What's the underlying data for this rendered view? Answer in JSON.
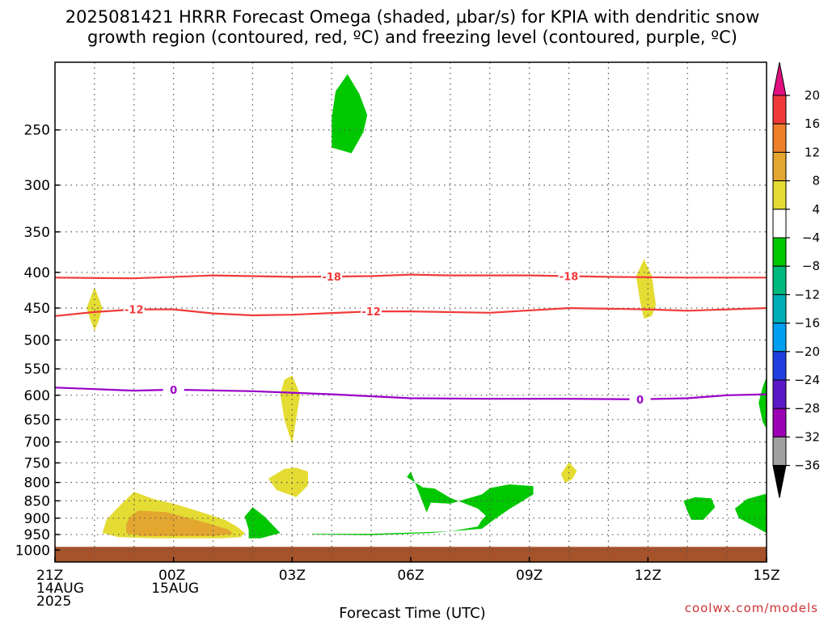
{
  "chart_data": {
    "type": "contour",
    "title_line1": "2025081421 HRRR Forecast Omega (shaded, μbar/s) for KPIA with dendritic snow",
    "title_line2": "growth region (contoured, red, ºC) and freezing level (contoured, purple, ºC)",
    "xlabel": "Forecast Time (UTC)",
    "credit": "coolwx.com/models",
    "x_range_hours": [
      0,
      18
    ],
    "y_scale": "log",
    "y_range_mb": [
      200,
      1040
    ],
    "y_ticks": [
      250,
      300,
      350,
      400,
      450,
      500,
      550,
      600,
      650,
      700,
      750,
      800,
      850,
      900,
      950,
      1000
    ],
    "x_ticks": [
      {
        "h": 0,
        "lines": [
          "21Z",
          "14AUG",
          "2025"
        ]
      },
      {
        "h": 3,
        "lines": [
          "00Z",
          "15AUG"
        ]
      },
      {
        "h": 6,
        "lines": [
          "03Z"
        ]
      },
      {
        "h": 9,
        "lines": [
          "06Z"
        ]
      },
      {
        "h": 12,
        "lines": [
          "09Z"
        ]
      },
      {
        "h": 15,
        "lines": [
          "12Z"
        ]
      },
      {
        "h": 18,
        "lines": [
          "15Z"
        ]
      }
    ],
    "colorbar": {
      "ticks": [
        "20",
        "16",
        "12",
        "8",
        "4",
        "−4",
        "−8",
        "−12",
        "−16",
        "−20",
        "−24",
        "−28",
        "−32",
        "−36"
      ],
      "colors": [
        "#f03a3a",
        "#ee7f2a",
        "#e3a72f",
        "#e4dc33",
        "#ffffff",
        "#00c800",
        "#00b97f",
        "#00aeb5",
        "#009ff0",
        "#1f3fe0",
        "#5a18c8",
        "#9a00b4",
        "#a0a0a0"
      ],
      "top_arrow_color": "#e0107f",
      "bottom_arrow_color": "#000000"
    },
    "contours": [
      {
        "value": "-18",
        "color": "#f03a3a",
        "label_hours": [
          7.0,
          13.0
        ],
        "points": [
          [
            0,
            407
          ],
          [
            2,
            408
          ],
          [
            4,
            404
          ],
          [
            6,
            406
          ],
          [
            8,
            405
          ],
          [
            9,
            403
          ],
          [
            10,
            404
          ],
          [
            12,
            404
          ],
          [
            14,
            406
          ],
          [
            16,
            407
          ],
          [
            18,
            407
          ]
        ]
      },
      {
        "value": "-12",
        "color": "#f03a3a",
        "label_hours": [
          2.0,
          8.0
        ],
        "points": [
          [
            0,
            462
          ],
          [
            1,
            456
          ],
          [
            2,
            452
          ],
          [
            3,
            452
          ],
          [
            4,
            458
          ],
          [
            5,
            461
          ],
          [
            6,
            460
          ],
          [
            8,
            455
          ],
          [
            9,
            455
          ],
          [
            11,
            457
          ],
          [
            13,
            450
          ],
          [
            15,
            452
          ],
          [
            16,
            454
          ],
          [
            18,
            450
          ]
        ]
      },
      {
        "value": "0",
        "color": "#9a00c8",
        "label_hours": [
          3.0,
          14.8
        ],
        "points": [
          [
            0,
            585
          ],
          [
            1,
            588
          ],
          [
            2,
            591
          ],
          [
            3,
            589
          ],
          [
            5,
            592
          ],
          [
            7,
            598
          ],
          [
            9,
            606
          ],
          [
            11,
            607
          ],
          [
            13,
            607
          ],
          [
            14.8,
            608
          ],
          [
            16,
            606
          ],
          [
            17,
            600
          ],
          [
            18,
            598
          ]
        ]
      }
    ],
    "shaded_regions": [
      {
        "value": "-4 to -8",
        "color": "#00c800",
        "points": [
          [
            7.4,
            208
          ],
          [
            7.7,
            222
          ],
          [
            7.9,
            238
          ],
          [
            7.8,
            252
          ],
          [
            7.5,
            270
          ],
          [
            7.0,
            265
          ],
          [
            7.0,
            240
          ],
          [
            7.1,
            220
          ]
        ]
      },
      {
        "value": "-4 to -8",
        "color": "#00c800",
        "points": [
          [
            5.0,
            868
          ],
          [
            5.3,
            895
          ],
          [
            5.7,
            945
          ],
          [
            5.2,
            962
          ],
          [
            4.9,
            962
          ],
          [
            4.9,
            935
          ],
          [
            4.8,
            895
          ]
        ]
      },
      {
        "value": "-4 to -8",
        "color": "#00c800",
        "points": [
          [
            6.5,
            950
          ],
          [
            8.0,
            952
          ],
          [
            9.5,
            945
          ],
          [
            10.8,
            932
          ],
          [
            11.1,
            905
          ],
          [
            11.5,
            873
          ],
          [
            12.1,
            832
          ],
          [
            12.1,
            810
          ],
          [
            11.5,
            805
          ],
          [
            11.0,
            815
          ],
          [
            10.8,
            832
          ],
          [
            10.0,
            858
          ],
          [
            9.5,
            855
          ],
          [
            9.5,
            858
          ],
          [
            9.4,
            883
          ],
          [
            9.0,
            772
          ],
          [
            8.9,
            786
          ],
          [
            9.3,
            813
          ],
          [
            9.6,
            816
          ],
          [
            10.0,
            842
          ],
          [
            10.7,
            872
          ],
          [
            10.9,
            893
          ],
          [
            10.8,
            905
          ],
          [
            10.7,
            925
          ],
          [
            10.0,
            940
          ],
          [
            9.5,
            942
          ],
          [
            8.0,
            948
          ],
          [
            6.5,
            948
          ]
        ]
      },
      {
        "value": "-4 to -8",
        "color": "#00c800",
        "points": [
          [
            16.2,
            840
          ],
          [
            16.6,
            843
          ],
          [
            16.7,
            868
          ],
          [
            16.4,
            905
          ],
          [
            16.1,
            905
          ],
          [
            16.0,
            880
          ],
          [
            15.9,
            850
          ]
        ]
      },
      {
        "value": "-4 to -8",
        "color": "#00c800",
        "points": [
          [
            18.0,
            830
          ],
          [
            17.5,
            845
          ],
          [
            17.2,
            872
          ],
          [
            17.3,
            900
          ],
          [
            18.0,
            945
          ]
        ]
      },
      {
        "value": "-4 to -8",
        "color": "#00c800",
        "points": [
          [
            18.0,
            565
          ],
          [
            17.9,
            585
          ],
          [
            17.8,
            615
          ],
          [
            17.9,
            655
          ],
          [
            18.0,
            670
          ]
        ]
      },
      {
        "value": "4 to 8",
        "color": "#e4dc33",
        "points": [
          [
            1.0,
            420
          ],
          [
            1.2,
            450
          ],
          [
            1.1,
            470
          ],
          [
            1.0,
            485
          ],
          [
            0.9,
            468
          ],
          [
            0.8,
            450
          ]
        ]
      },
      {
        "value": "4 to 8",
        "color": "#e4dc33",
        "points": [
          [
            14.9,
            383
          ],
          [
            15.1,
            405
          ],
          [
            15.2,
            445
          ],
          [
            15.1,
            462
          ],
          [
            14.9,
            466
          ],
          [
            14.8,
            440
          ],
          [
            14.7,
            405
          ]
        ]
      },
      {
        "value": "4 to 8",
        "color": "#e4dc33",
        "points": [
          [
            6.0,
            562
          ],
          [
            6.2,
            598
          ],
          [
            6.1,
            650
          ],
          [
            6.0,
            705
          ],
          [
            5.8,
            650
          ],
          [
            5.7,
            598
          ],
          [
            5.8,
            570
          ]
        ]
      },
      {
        "value": "4 to 8",
        "color": "#e4dc33",
        "points": [
          [
            6.1,
            762
          ],
          [
            6.4,
            772
          ],
          [
            6.4,
            808
          ],
          [
            6.1,
            840
          ],
          [
            5.6,
            820
          ],
          [
            5.4,
            790
          ],
          [
            5.8,
            765
          ]
        ]
      },
      {
        "value": "4 to 8",
        "color": "#e4dc33",
        "points": [
          [
            13.0,
            748
          ],
          [
            13.2,
            770
          ],
          [
            13.1,
            790
          ],
          [
            12.9,
            802
          ],
          [
            12.8,
            778
          ]
        ]
      },
      {
        "value": "4 to 8",
        "color": "#e4dc33",
        "points": [
          [
            2.0,
            825
          ],
          [
            2.5,
            845
          ],
          [
            3.0,
            858
          ],
          [
            3.5,
            875
          ],
          [
            4.3,
            905
          ],
          [
            4.6,
            925
          ],
          [
            4.8,
            945
          ],
          [
            4.7,
            958
          ],
          [
            4.2,
            962
          ],
          [
            3.5,
            962
          ],
          [
            2.5,
            962
          ],
          [
            1.6,
            958
          ],
          [
            1.2,
            945
          ],
          [
            1.3,
            905
          ],
          [
            1.6,
            868
          ]
        ]
      },
      {
        "value": "8 to 12",
        "color": "#e3a72f",
        "points": [
          [
            2.1,
            878
          ],
          [
            2.8,
            882
          ],
          [
            3.4,
            900
          ],
          [
            4.0,
            920
          ],
          [
            4.4,
            935
          ],
          [
            4.5,
            948
          ],
          [
            4.0,
            955
          ],
          [
            3.2,
            955
          ],
          [
            2.2,
            955
          ],
          [
            1.8,
            945
          ],
          [
            1.8,
            918
          ],
          [
            1.9,
            895
          ]
        ]
      }
    ],
    "surface_color": "#a6522b"
  }
}
